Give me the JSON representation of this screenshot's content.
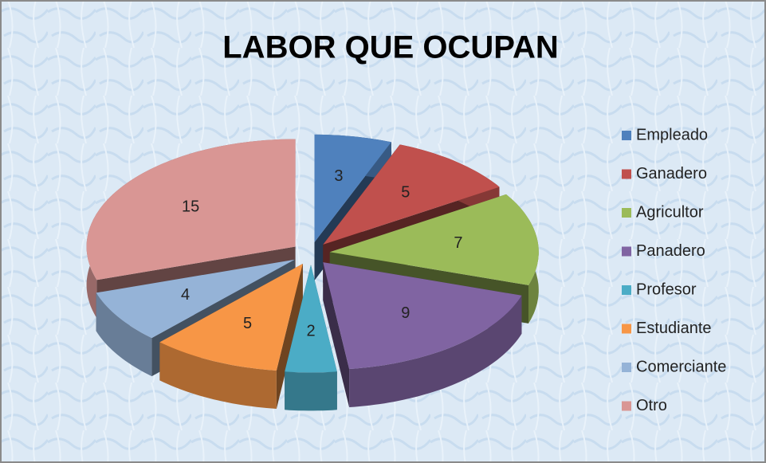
{
  "chart_data": {
    "type": "pie3d",
    "title": "LABOR QUE OCUPAN",
    "categories": [
      "Empleado",
      "Ganadero",
      "Agricultor",
      "Panadero",
      "Profesor",
      "Estudiante",
      "Comerciante",
      "Otro"
    ],
    "values": [
      3,
      5,
      7,
      9,
      2,
      5,
      4,
      15
    ],
    "colors": [
      "#4f81bd",
      "#c0504d",
      "#9bbb59",
      "#8064a2",
      "#4bacc6",
      "#f79646",
      "#95b3d7",
      "#d99694"
    ],
    "legend": "right"
  }
}
